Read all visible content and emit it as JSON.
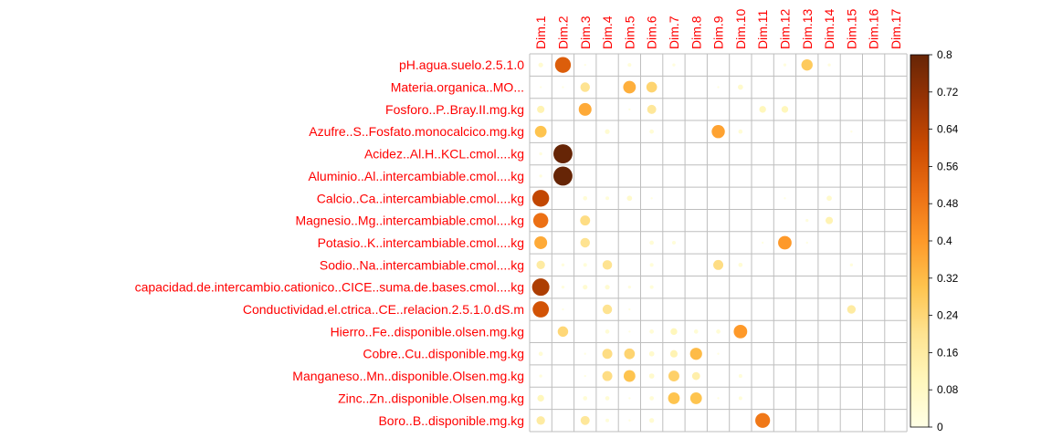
{
  "chart_data": {
    "type": "heatmap",
    "rows": [
      "pH.agua.suelo.2.5.1.0",
      "Materia.organica..MO...",
      "Fosforo..P..Bray.II.mg.kg",
      "Azufre..S..Fosfato.monocalcico.mg.kg",
      "Acidez..Al.H..KCL.cmol....kg",
      "Aluminio..Al..intercambiable.cmol....kg",
      "Calcio..Ca..intercambiable.cmol....kg",
      "Magnesio..Mg..intercambiable.cmol....kg",
      "Potasio..K..intercambiable.cmol....kg",
      "Sodio..Na..intercambiable.cmol....kg",
      "capacidad.de.intercambio.cationico..CICE..suma.de.bases.cmol....kg",
      "Conductividad.el.ctrica..CE..relacion.2.5.1.0.dS.m",
      "Hierro..Fe..disponible.olsen.mg.kg",
      "Cobre..Cu..disponible.mg.kg",
      "Manganeso..Mn..disponible.Olsen.mg.kg",
      "Zinc..Zn..disponible.Olsen.mg.kg",
      "Boro..B..disponible.mg.kg"
    ],
    "columns": [
      "Dim.1",
      "Dim.2",
      "Dim.3",
      "Dim.4",
      "Dim.5",
      "Dim.6",
      "Dim.7",
      "Dim.8",
      "Dim.9",
      "Dim.10",
      "Dim.11",
      "Dim.12",
      "Dim.13",
      "Dim.14",
      "Dim.15",
      "Dim.16",
      "Dim.17"
    ],
    "values": [
      [
        0.05,
        0.55,
        0.01,
        0.0,
        0.03,
        0.0,
        0.02,
        0.0,
        0.0,
        0.0,
        0.0,
        0.02,
        0.28,
        0.02,
        0.0,
        0.0,
        0.0
      ],
      [
        0.01,
        0.01,
        0.2,
        0.0,
        0.35,
        0.25,
        0.0,
        0.0,
        0.01,
        0.06,
        0.0,
        0.0,
        0.0,
        0.0,
        0.0,
        0.0,
        0.0
      ],
      [
        0.12,
        0.0,
        0.36,
        0.0,
        0.01,
        0.18,
        0.0,
        0.0,
        0.0,
        0.0,
        0.1,
        0.1,
        0.0,
        0.0,
        0.0,
        0.0,
        0.0
      ],
      [
        0.3,
        0.0,
        0.0,
        0.05,
        0.0,
        0.04,
        0.0,
        0.0,
        0.38,
        0.04,
        0.0,
        0.0,
        0.0,
        0.0,
        0.01,
        0.0,
        0.0
      ],
      [
        0.02,
        0.8,
        0.0,
        0.0,
        0.0,
        0.0,
        0.0,
        0.0,
        0.0,
        0.0,
        0.0,
        0.0,
        0.0,
        0.0,
        0.0,
        0.0,
        0.0
      ],
      [
        0.02,
        0.8,
        0.0,
        0.0,
        0.0,
        0.0,
        0.0,
        0.0,
        0.0,
        0.0,
        0.0,
        0.0,
        0.0,
        0.0,
        0.0,
        0.0,
        0.0
      ],
      [
        0.62,
        0.0,
        0.04,
        0.03,
        0.06,
        0.01,
        0.0,
        0.0,
        0.0,
        0.0,
        0.0,
        0.01,
        0.0,
        0.06,
        0.0,
        0.0,
        0.0
      ],
      [
        0.5,
        0.0,
        0.22,
        0.0,
        0.0,
        0.0,
        0.0,
        0.0,
        0.0,
        0.0,
        0.0,
        0.0,
        0.02,
        0.12,
        0.0,
        0.0,
        0.0
      ],
      [
        0.36,
        0.0,
        0.2,
        0.0,
        0.0,
        0.04,
        0.03,
        0.0,
        0.0,
        0.0,
        0.01,
        0.4,
        0.01,
        0.0,
        0.0,
        0.0,
        0.0
      ],
      [
        0.16,
        0.02,
        0.03,
        0.2,
        0.0,
        0.03,
        0.0,
        0.0,
        0.22,
        0.04,
        0.0,
        0.0,
        0.0,
        0.0,
        0.02,
        0.0,
        0.0
      ],
      [
        0.66,
        0.02,
        0.05,
        0.05,
        0.02,
        0.03,
        0.0,
        0.0,
        0.0,
        0.0,
        0.0,
        0.0,
        0.0,
        0.0,
        0.0,
        0.0,
        0.0
      ],
      [
        0.58,
        0.01,
        0.0,
        0.2,
        0.01,
        0.0,
        0.0,
        0.0,
        0.0,
        0.0,
        0.0,
        0.0,
        0.0,
        0.0,
        0.16,
        0.0,
        0.0
      ],
      [
        0.0,
        0.24,
        0.0,
        0.04,
        0.01,
        0.04,
        0.1,
        0.04,
        0.04,
        0.4,
        0.0,
        0.0,
        0.0,
        0.0,
        0.0,
        0.0,
        0.0
      ],
      [
        0.04,
        0.0,
        0.01,
        0.22,
        0.25,
        0.06,
        0.12,
        0.32,
        0.01,
        0.0,
        0.0,
        0.0,
        0.0,
        0.0,
        0.0,
        0.0,
        0.0
      ],
      [
        0.02,
        0.0,
        0.01,
        0.22,
        0.3,
        0.06,
        0.26,
        0.14,
        0.0,
        0.03,
        0.0,
        0.0,
        0.0,
        0.0,
        0.0,
        0.0,
        0.0
      ],
      [
        0.1,
        0.0,
        0.04,
        0.04,
        0.01,
        0.04,
        0.3,
        0.3,
        0.01,
        0.03,
        0.0,
        0.0,
        0.0,
        0.0,
        0.0,
        0.0,
        0.0
      ],
      [
        0.16,
        0.0,
        0.18,
        0.03,
        0.01,
        0.05,
        0.0,
        0.0,
        0.0,
        0.0,
        0.48,
        0.0,
        0.0,
        0.0,
        0.0,
        0.0,
        0.0
      ]
    ],
    "colorbar": {
      "range": [
        0,
        0.8
      ],
      "ticks": [
        "0.8",
        "0.72",
        "0.64",
        "0.56",
        "0.48",
        "0.4",
        "0.32",
        "0.24",
        "0.16",
        "0.08",
        "0"
      ],
      "colors": [
        "#FFFFE5",
        "#FFF7BC",
        "#FEE391",
        "#FEC44F",
        "#FE9929",
        "#EC7014",
        "#CC4C02",
        "#993404",
        "#662506"
      ]
    },
    "grid": true,
    "legend": "right"
  },
  "colors": {
    "label": "#FF0000",
    "grid": "#BEBEBE"
  }
}
